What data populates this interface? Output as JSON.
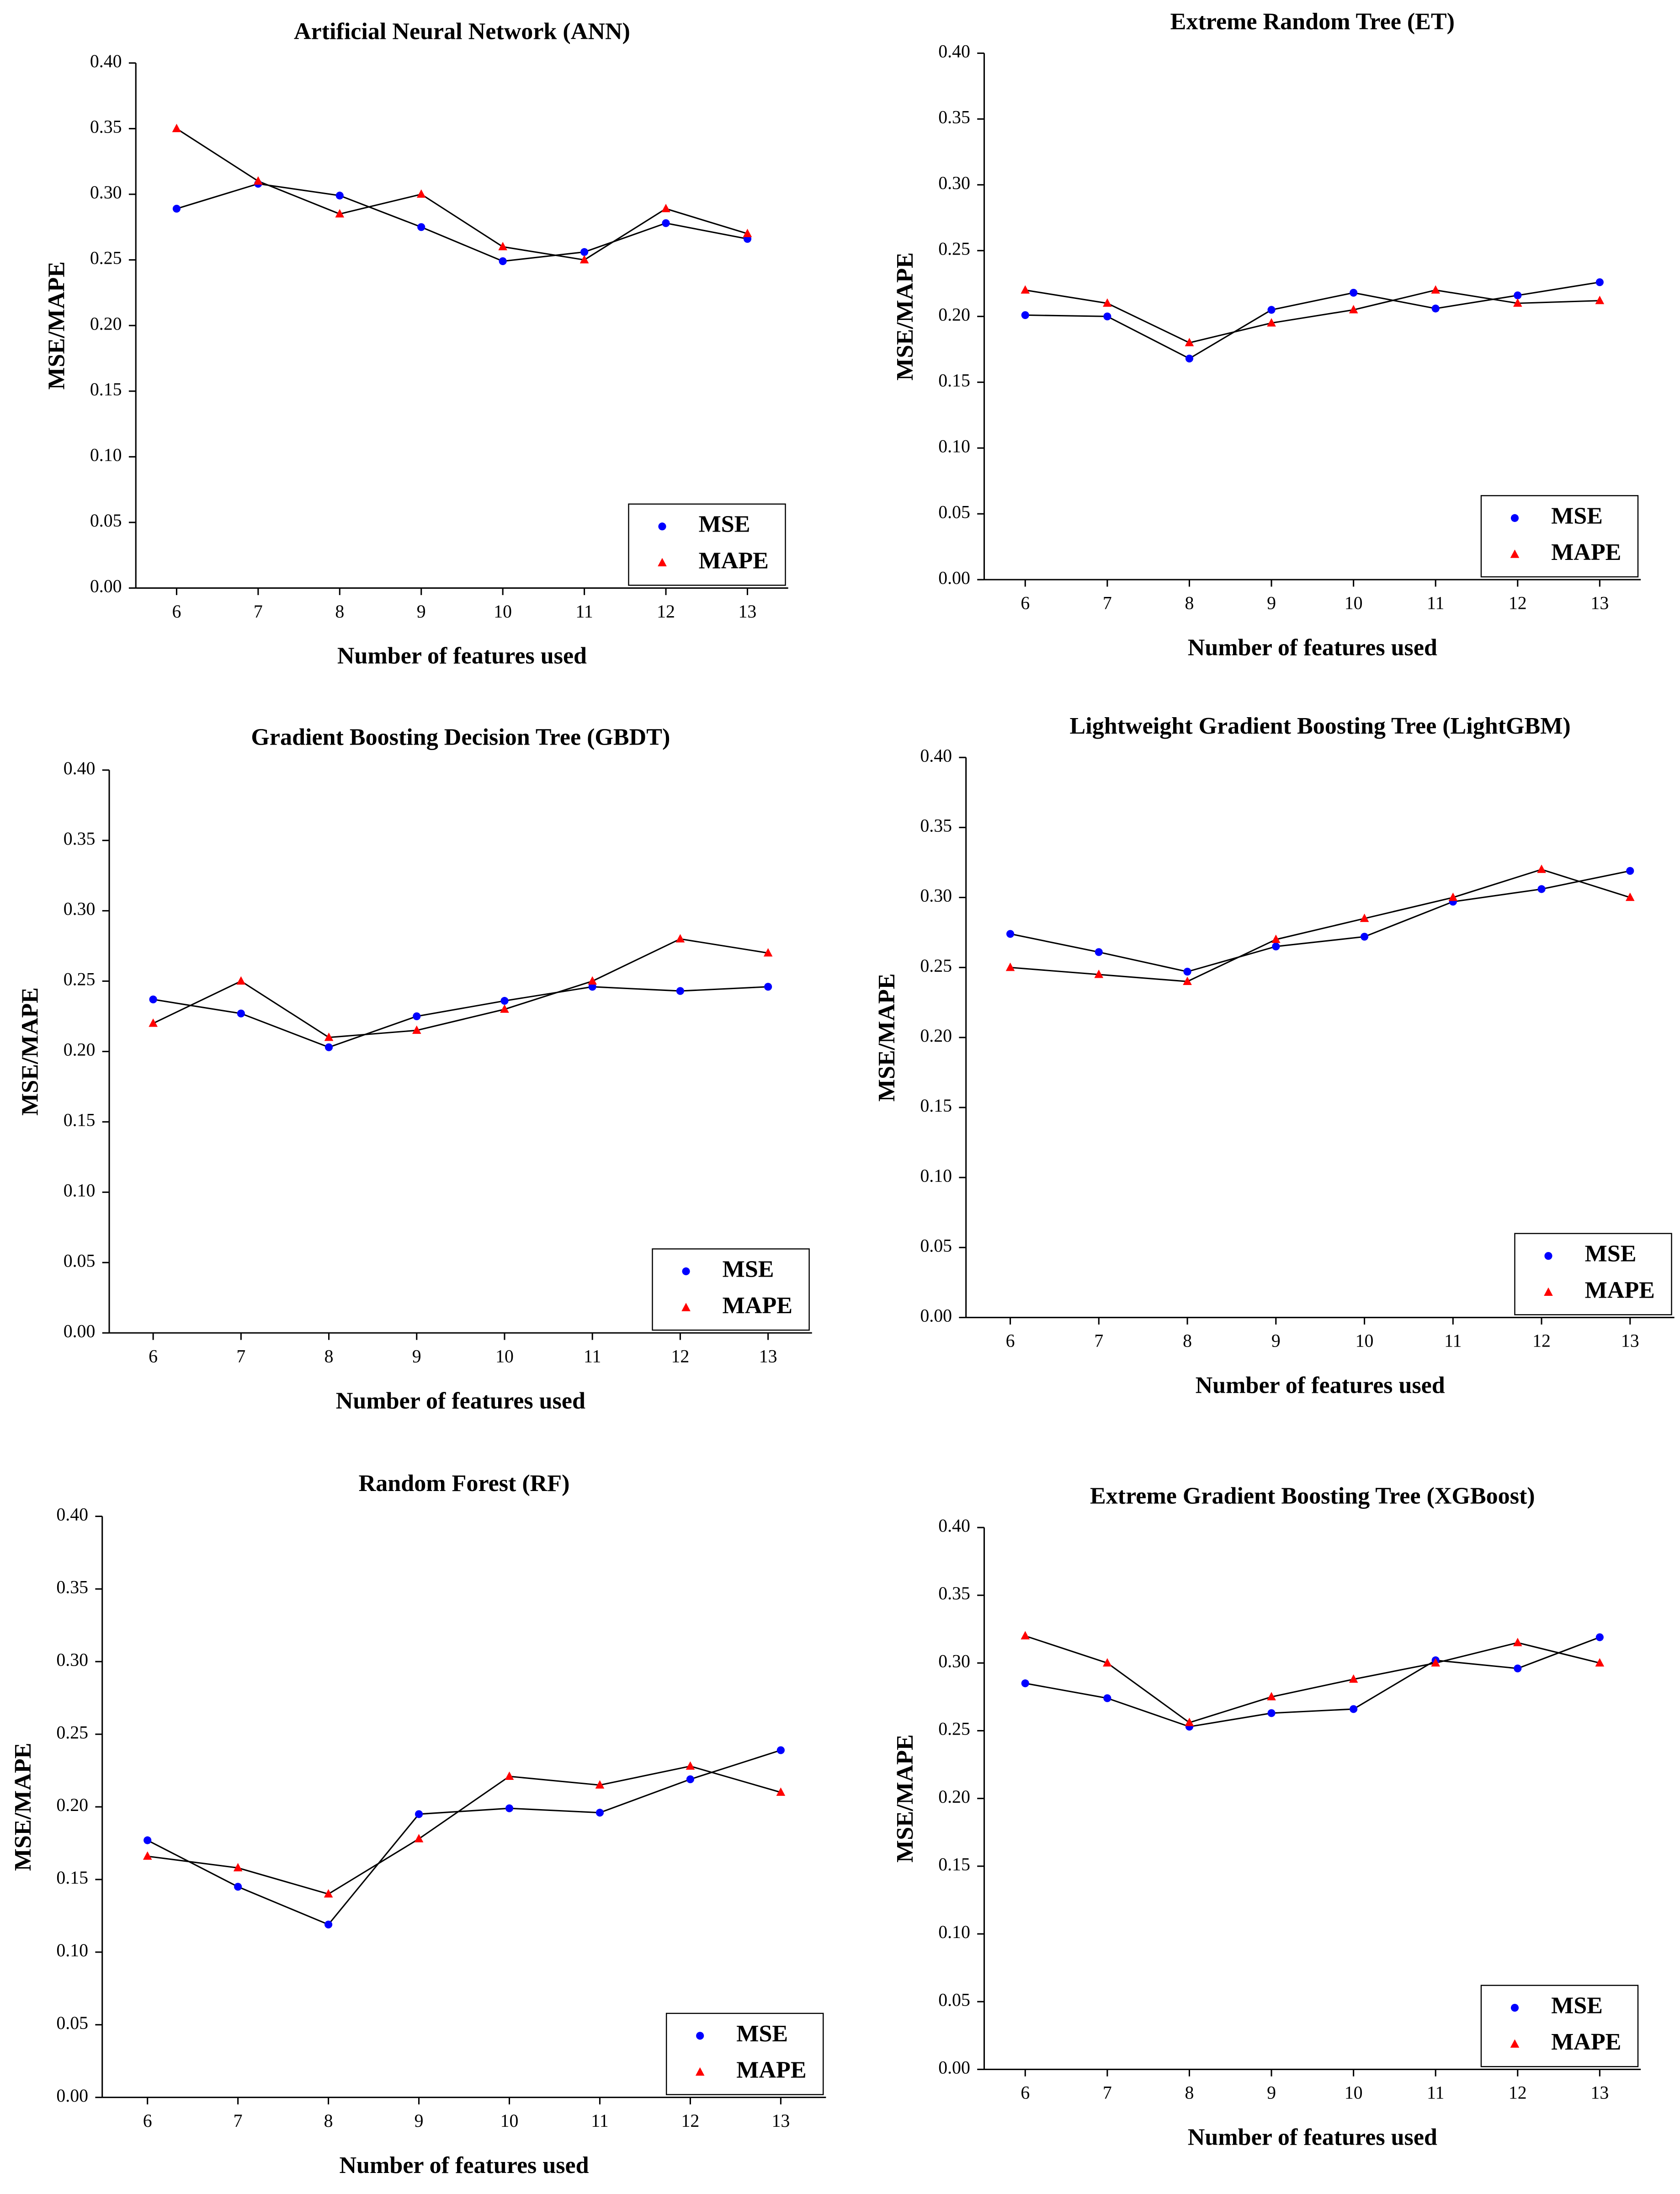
{
  "chart_data": [
    {
      "type": "line",
      "title": "Artificial Neural Network (ANN)",
      "xlabel": "Number of features used",
      "ylabel": "MSE/MAPE",
      "x": [
        6,
        7,
        8,
        9,
        10,
        11,
        12,
        13
      ],
      "xlim": [
        5.5,
        13.5
      ],
      "xticks": [
        6,
        7,
        8,
        9,
        10,
        11,
        12,
        13
      ],
      "ylim": [
        0,
        0.4
      ],
      "yticks": [
        {
          "value": 0,
          "label": "0.00"
        },
        {
          "value": 0.05,
          "label": "0.05"
        },
        {
          "value": 0.1,
          "label": "0.10"
        },
        {
          "value": 0.15,
          "label": "0.15"
        },
        {
          "value": 0.2,
          "label": "0.20"
        },
        {
          "value": 0.25,
          "label": "0.25"
        },
        {
          "value": 0.3,
          "label": "0.30"
        },
        {
          "value": 0.35,
          "label": "0.35"
        },
        {
          "value": 0.4,
          "label": "0.40"
        }
      ],
      "legend": "lower right",
      "line_color": "#000000",
      "series": [
        {
          "name": "MSE",
          "color": "#0000ff",
          "marker": "circle",
          "values": [
            0.289,
            0.308,
            0.299,
            0.275,
            0.249,
            0.256,
            0.278,
            0.266
          ]
        },
        {
          "name": "MAPE",
          "color": "#ff0000",
          "marker": "triangle",
          "values": [
            0.35,
            0.31,
            0.285,
            0.3,
            0.26,
            0.25,
            0.289,
            0.27
          ]
        }
      ]
    },
    {
      "type": "line",
      "title": "Extreme Random Tree (ET)",
      "xlabel": "Number of features used",
      "ylabel": "MSE/MAPE",
      "x": [
        6,
        7,
        8,
        9,
        10,
        11,
        12,
        13
      ],
      "xlim": [
        5.5,
        13.5
      ],
      "xticks": [
        6,
        7,
        8,
        9,
        10,
        11,
        12,
        13
      ],
      "ylim": [
        0,
        0.4
      ],
      "yticks": [
        {
          "value": 0,
          "label": "0.00"
        },
        {
          "value": 0.05,
          "label": "0.05"
        },
        {
          "value": 0.1,
          "label": "0.10"
        },
        {
          "value": 0.15,
          "label": "0.15"
        },
        {
          "value": 0.2,
          "label": "0.20"
        },
        {
          "value": 0.25,
          "label": "0.25"
        },
        {
          "value": 0.3,
          "label": "0.30"
        },
        {
          "value": 0.35,
          "label": "0.35"
        },
        {
          "value": 0.4,
          "label": "0.40"
        }
      ],
      "legend": "lower right",
      "line_color": "#000000",
      "series": [
        {
          "name": "MSE",
          "color": "#0000ff",
          "marker": "circle",
          "values": [
            0.201,
            0.2,
            0.168,
            0.205,
            0.218,
            0.206,
            0.216,
            0.226
          ]
        },
        {
          "name": "MAPE",
          "color": "#ff0000",
          "marker": "triangle",
          "values": [
            0.22,
            0.21,
            0.18,
            0.195,
            0.205,
            0.22,
            0.21,
            0.212
          ]
        }
      ]
    },
    {
      "type": "line",
      "title": "Gradient Boosting Decision Tree (GBDT)",
      "xlabel": "Number of features used",
      "ylabel": "MSE/MAPE",
      "x": [
        6,
        7,
        8,
        9,
        10,
        11,
        12,
        13
      ],
      "xlim": [
        5.5,
        13.5
      ],
      "xticks": [
        6,
        7,
        8,
        9,
        10,
        11,
        12,
        13
      ],
      "ylim": [
        0,
        0.4
      ],
      "yticks": [
        {
          "value": 0,
          "label": "0.00"
        },
        {
          "value": 0.05,
          "label": "0.05"
        },
        {
          "value": 0.1,
          "label": "0.10"
        },
        {
          "value": 0.15,
          "label": "0.15"
        },
        {
          "value": 0.2,
          "label": "0.20"
        },
        {
          "value": 0.25,
          "label": "0.25"
        },
        {
          "value": 0.3,
          "label": "0.30"
        },
        {
          "value": 0.35,
          "label": "0.35"
        },
        {
          "value": 0.4,
          "label": "0.40"
        }
      ],
      "legend": "lower right",
      "line_color": "#000000",
      "series": [
        {
          "name": "MSE",
          "color": "#0000ff",
          "marker": "circle",
          "values": [
            0.237,
            0.227,
            0.203,
            0.225,
            0.236,
            0.246,
            0.243,
            0.246
          ]
        },
        {
          "name": "MAPE",
          "color": "#ff0000",
          "marker": "triangle",
          "values": [
            0.22,
            0.25,
            0.21,
            0.215,
            0.23,
            0.25,
            0.28,
            0.27
          ]
        }
      ]
    },
    {
      "type": "line",
      "title": "Lightweight Gradient Boosting Tree (LightGBM)",
      "xlabel": "Number of features used",
      "ylabel": "MSE/MAPE",
      "x": [
        6,
        7,
        8,
        9,
        10,
        11,
        12,
        13
      ],
      "xlim": [
        5.5,
        13.5
      ],
      "xticks": [
        6,
        7,
        8,
        9,
        10,
        11,
        12,
        13
      ],
      "ylim": [
        0,
        0.4
      ],
      "yticks": [
        {
          "value": 0,
          "label": "0.00"
        },
        {
          "value": 0.05,
          "label": "0.05"
        },
        {
          "value": 0.1,
          "label": "0.10"
        },
        {
          "value": 0.15,
          "label": "0.15"
        },
        {
          "value": 0.2,
          "label": "0.20"
        },
        {
          "value": 0.25,
          "label": "0.25"
        },
        {
          "value": 0.3,
          "label": "0.30"
        },
        {
          "value": 0.35,
          "label": "0.35"
        },
        {
          "value": 0.4,
          "label": "0.40"
        }
      ],
      "legend": "lower right",
      "line_color": "#000000",
      "series": [
        {
          "name": "MSE",
          "color": "#0000ff",
          "marker": "circle",
          "values": [
            0.274,
            0.261,
            0.247,
            0.265,
            0.272,
            0.297,
            0.306,
            0.319
          ]
        },
        {
          "name": "MAPE",
          "color": "#ff0000",
          "marker": "triangle",
          "values": [
            0.25,
            0.245,
            0.24,
            0.27,
            0.285,
            0.3,
            0.32,
            0.3
          ]
        }
      ]
    },
    {
      "type": "line",
      "title": "Random Forest (RF)",
      "xlabel": "Number of features used",
      "ylabel": "MSE/MAPE",
      "x": [
        6,
        7,
        8,
        9,
        10,
        11,
        12,
        13
      ],
      "xlim": [
        5.5,
        13.5
      ],
      "xticks": [
        6,
        7,
        8,
        9,
        10,
        11,
        12,
        13
      ],
      "ylim": [
        0,
        0.4
      ],
      "yticks": [
        {
          "value": 0,
          "label": "0.00"
        },
        {
          "value": 0.05,
          "label": "0.05"
        },
        {
          "value": 0.1,
          "label": "0.10"
        },
        {
          "value": 0.15,
          "label": "0.15"
        },
        {
          "value": 0.2,
          "label": "0.20"
        },
        {
          "value": 0.25,
          "label": "0.25"
        },
        {
          "value": 0.3,
          "label": "0.30"
        },
        {
          "value": 0.35,
          "label": "0.35"
        },
        {
          "value": 0.4,
          "label": "0.40"
        }
      ],
      "legend": "lower right",
      "line_color": "#000000",
      "series": [
        {
          "name": "MSE",
          "color": "#0000ff",
          "marker": "circle",
          "values": [
            0.177,
            0.145,
            0.119,
            0.195,
            0.199,
            0.196,
            0.219,
            0.239
          ]
        },
        {
          "name": "MAPE",
          "color": "#ff0000",
          "marker": "triangle",
          "values": [
            0.166,
            0.158,
            0.14,
            0.178,
            0.221,
            0.215,
            0.228,
            0.21
          ]
        }
      ]
    },
    {
      "type": "line",
      "title": "Extreme Gradient Boosting Tree (XGBoost)",
      "xlabel": "Number of features used",
      "ylabel": "MSE/MAPE",
      "x": [
        6,
        7,
        8,
        9,
        10,
        11,
        12,
        13
      ],
      "xlim": [
        5.5,
        13.5
      ],
      "xticks": [
        6,
        7,
        8,
        9,
        10,
        11,
        12,
        13
      ],
      "ylim": [
        0,
        0.4
      ],
      "yticks": [
        {
          "value": 0,
          "label": "0.00"
        },
        {
          "value": 0.05,
          "label": "0.05"
        },
        {
          "value": 0.1,
          "label": "0.10"
        },
        {
          "value": 0.15,
          "label": "0.15"
        },
        {
          "value": 0.2,
          "label": "0.20"
        },
        {
          "value": 0.25,
          "label": "0.25"
        },
        {
          "value": 0.3,
          "label": "0.30"
        },
        {
          "value": 0.35,
          "label": "0.35"
        },
        {
          "value": 0.4,
          "label": "0.40"
        }
      ],
      "legend": "lower right",
      "line_color": "#000000",
      "series": [
        {
          "name": "MSE",
          "color": "#0000ff",
          "marker": "circle",
          "values": [
            0.285,
            0.274,
            0.253,
            0.263,
            0.266,
            0.302,
            0.296,
            0.319
          ]
        },
        {
          "name": "MAPE",
          "color": "#ff0000",
          "marker": "triangle",
          "values": [
            0.32,
            0.3,
            0.256,
            0.275,
            0.288,
            0.3,
            0.315,
            0.3
          ]
        }
      ]
    }
  ]
}
